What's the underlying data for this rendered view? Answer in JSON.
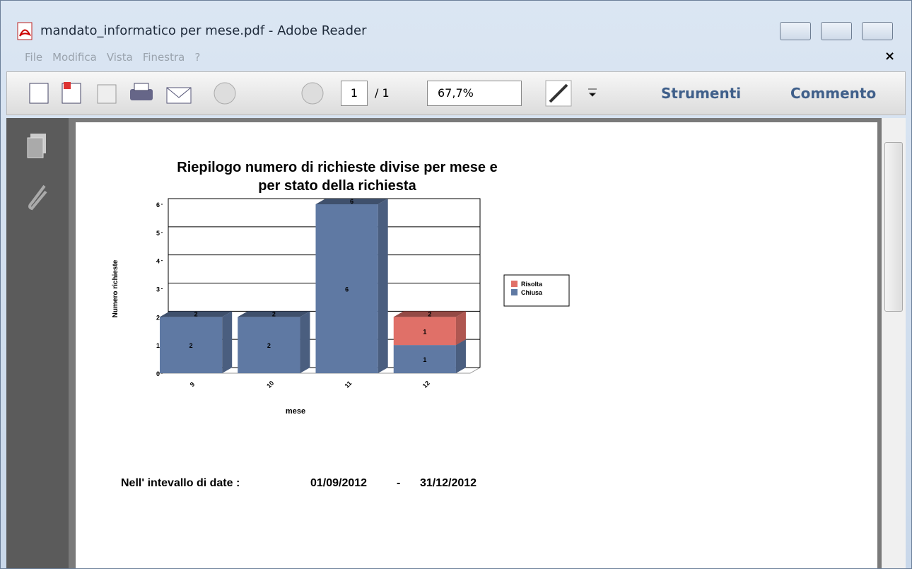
{
  "window": {
    "title": "mandato_informatico per mese.pdf - Adobe Reader",
    "menu": [
      "File",
      "Modifica",
      "Vista",
      "Finestra",
      "?"
    ],
    "toolbar": {
      "page": "1",
      "page_total": "/ 1",
      "zoom": "67,7%",
      "tools": "Strumenti",
      "comment": "Commento"
    }
  },
  "chart_data": {
    "type": "bar",
    "stacked": true,
    "title": "Riepilogo numero di richieste divise per mese e per stato della richiesta",
    "x_label": "mese",
    "y_label": "Numero richieste",
    "categories": [
      "9",
      "10",
      "11",
      "12"
    ],
    "series": [
      {
        "name": "Risolta",
        "color": "#e07068",
        "values": [
          null,
          null,
          null,
          1
        ]
      },
      {
        "name": "Chiusa",
        "color": "#5f79a3",
        "values": [
          2,
          2,
          6,
          1
        ]
      }
    ],
    "totals": [
      2,
      2,
      6,
      2
    ],
    "ylim": [
      0,
      6
    ],
    "yticks": [
      0,
      1,
      2,
      3,
      4,
      5,
      6
    ],
    "grid": true,
    "legend": "right"
  },
  "document": {
    "range_label": "Nell' intevallo di date :",
    "start": "01/09/2012",
    "separator": "-",
    "end": "31/12/2012"
  }
}
